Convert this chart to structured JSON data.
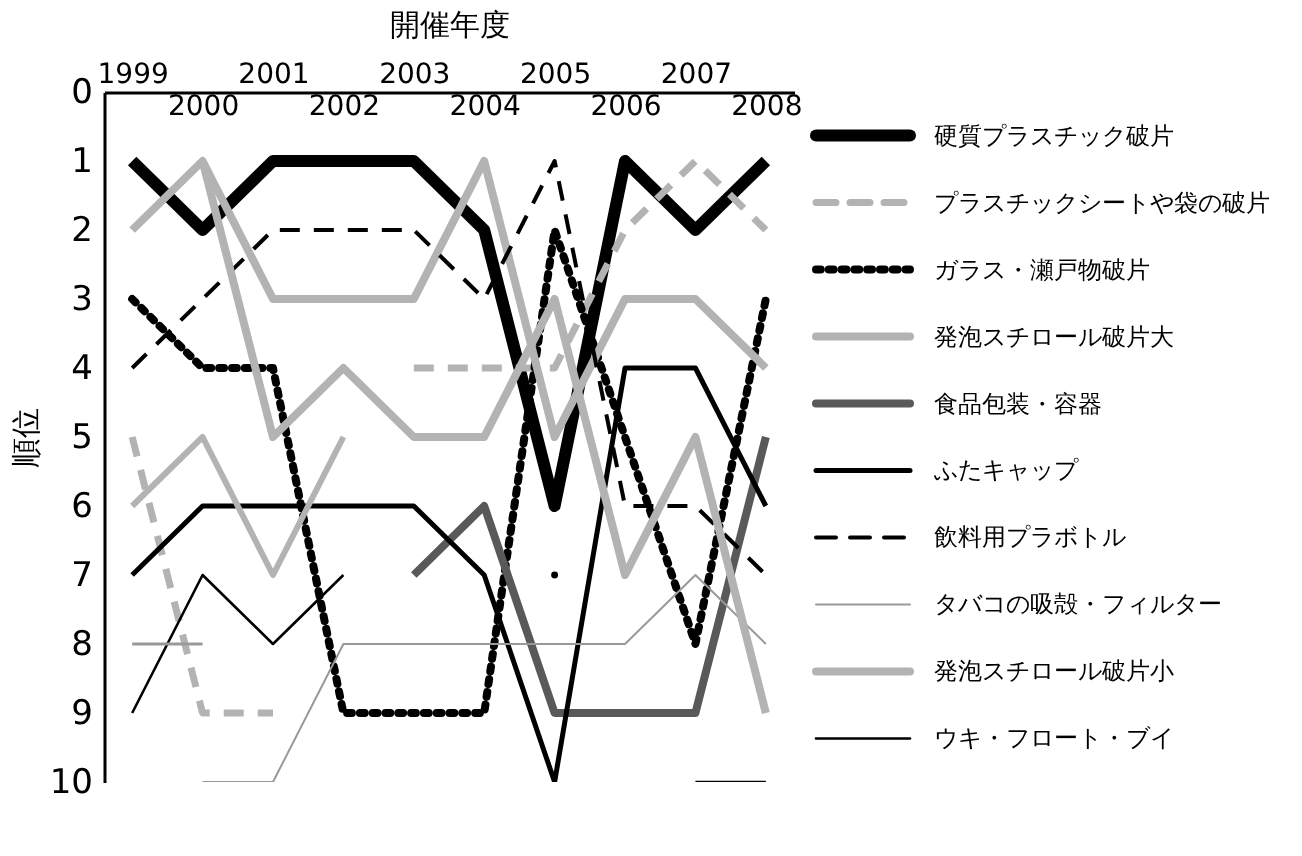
{
  "chart_data": {
    "type": "line",
    "xlabel": "開催年度",
    "ylabel": "順位",
    "categories": [
      "1999",
      "2000",
      "2001",
      "2002",
      "2003",
      "2004",
      "2005",
      "2006",
      "2007",
      "2008"
    ],
    "ylim": [
      10,
      0
    ],
    "yticks": [
      0,
      1,
      2,
      3,
      4,
      5,
      6,
      7,
      8,
      9,
      10
    ],
    "grid": false,
    "legend": "right",
    "marker": "none",
    "series": [
      {
        "name": "硬質プラスチック破片",
        "color": "#000000",
        "line_style": "solid",
        "values": [
          1,
          2,
          1,
          1,
          1,
          2,
          6,
          1,
          2,
          1
        ]
      },
      {
        "name": "プラスチックシートや袋の破片",
        "color": "#b3b3b3",
        "line_style": "dashed",
        "values": [
          5,
          9,
          9,
          null,
          4,
          4,
          4,
          2,
          1,
          2
        ]
      },
      {
        "name": "ガラス・瀬戸物破片",
        "color": "#000000",
        "line_style": "dotted",
        "values": [
          3,
          4,
          4,
          9,
          9,
          9,
          2,
          5,
          8,
          3
        ]
      },
      {
        "name": "発泡スチロール破片大",
        "color": "#b3b3b3",
        "line_style": "solid",
        "values": [
          2,
          1,
          3,
          3,
          3,
          1,
          5,
          3,
          3,
          4
        ]
      },
      {
        "name": "食品包装・容器",
        "color": "#595959",
        "line_style": "solid",
        "values": [
          null,
          null,
          null,
          null,
          7,
          6,
          9,
          9,
          9,
          5
        ]
      },
      {
        "name": "ふたキャップ",
        "color": "#000000",
        "line_style": "solid",
        "values": [
          7,
          6,
          6,
          6,
          6,
          7,
          10,
          4,
          4,
          6
        ]
      },
      {
        "name": "飲料用プラボトル",
        "color": "#000000",
        "line_style": "dashed",
        "values": [
          4,
          3,
          2,
          2,
          2,
          3,
          1,
          6,
          6,
          7
        ]
      },
      {
        "name": "タバコの吸殻・フィルター",
        "color": "#999999",
        "line_style": "solid",
        "values": [
          null,
          10,
          10,
          8,
          8,
          8,
          8,
          8,
          7,
          8
        ]
      },
      {
        "name": "発泡スチロール破片小",
        "color": "#b3b3b3",
        "line_style": "solid",
        "values": [
          null,
          1,
          5,
          4,
          5,
          5,
          3,
          7,
          5,
          9
        ]
      },
      {
        "name": "ウキ・フロート・ブイ",
        "color": "#000000",
        "line_style": "solid",
        "values": [
          9,
          7,
          8,
          7,
          null,
          null,
          7,
          null,
          10,
          10
        ]
      },
      {
        "color": "#b3b3b3",
        "line_style": "solid",
        "values": [
          6,
          5,
          7,
          5,
          null,
          null,
          null,
          null,
          null,
          null
        ]
      },
      {
        "color": "#999999",
        "line_style": "solid",
        "values": [
          8,
          8,
          null,
          null,
          null,
          null,
          null,
          null,
          null,
          null
        ]
      }
    ]
  }
}
